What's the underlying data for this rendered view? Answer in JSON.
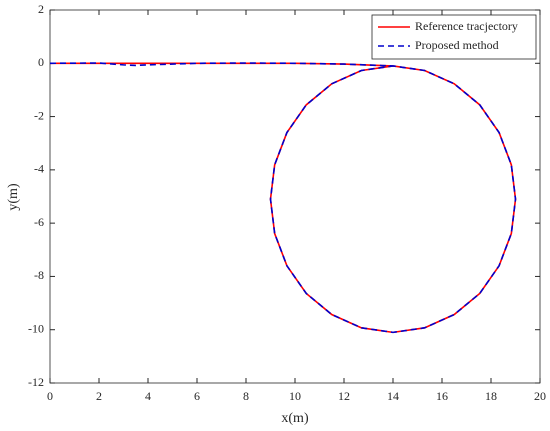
{
  "chart_data": {
    "type": "line",
    "x_label": "x(m)",
    "y_label": "y(m)",
    "x": [
      0,
      2,
      3,
      3.5,
      4,
      6,
      8,
      10,
      12,
      14,
      15.29,
      16.5,
      17.54,
      18.33,
      18.83,
      19,
      18.83,
      18.33,
      17.54,
      16.5,
      15.29,
      14,
      12.71,
      11.5,
      10.46,
      9.67,
      9.17,
      9,
      9.17,
      9.67,
      10.46,
      11.5,
      12.71,
      14
    ],
    "series": [
      {
        "name": "Reference tracjectory",
        "color": "#ff0000",
        "dash": false,
        "values": [
          0,
          0,
          0,
          0,
          0,
          0,
          0,
          0,
          -0.03,
          -0.1,
          -0.27,
          -0.77,
          -1.56,
          -2.6,
          -3.81,
          -5.1,
          -6.39,
          -7.6,
          -8.64,
          -9.43,
          -9.93,
          -10.1,
          -9.93,
          -9.43,
          -8.64,
          -7.6,
          -6.39,
          -5.1,
          -3.81,
          -2.6,
          -1.56,
          -0.77,
          -0.27,
          -0.1
        ]
      },
      {
        "name": "Proposed method",
        "color": "#0000cc",
        "dash": true,
        "values": [
          0,
          0.01,
          -0.06,
          -0.08,
          -0.06,
          0,
          0.01,
          0,
          -0.03,
          -0.1,
          -0.27,
          -0.77,
          -1.56,
          -2.6,
          -3.81,
          -5.1,
          -6.39,
          -7.6,
          -8.64,
          -9.43,
          -9.93,
          -10.1,
          -9.93,
          -9.43,
          -8.64,
          -7.6,
          -6.39,
          -5.1,
          -3.81,
          -2.6,
          -1.56,
          -0.77,
          -0.27,
          -0.1
        ]
      }
    ],
    "xlim": [
      0,
      20
    ],
    "ylim": [
      -12,
      2
    ],
    "xticks": [
      0,
      2,
      4,
      6,
      8,
      10,
      12,
      14,
      16,
      18,
      20
    ],
    "yticks": [
      -12,
      -10,
      -8,
      -6,
      -4,
      -2,
      0,
      2
    ],
    "grid": false,
    "legend": "top-right"
  }
}
